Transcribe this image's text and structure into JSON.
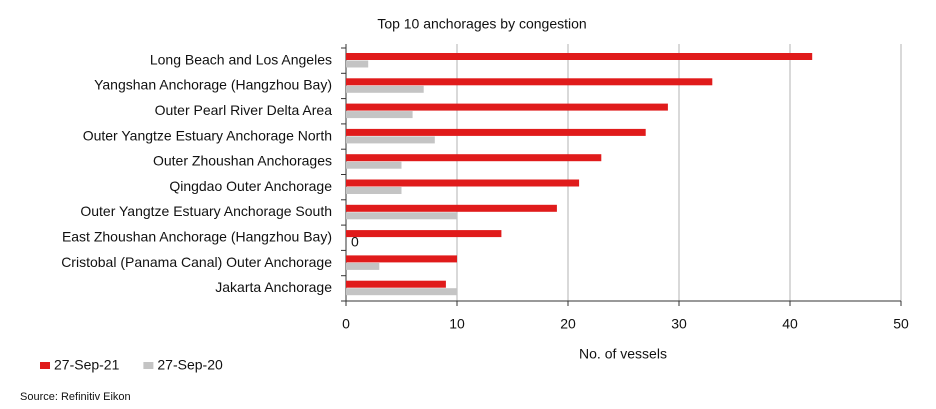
{
  "chart_data": {
    "type": "bar",
    "orientation": "horizontal",
    "title": "Top 10 anchorages by congestion",
    "xlabel": "No. of vessels",
    "categories": [
      "Long Beach and Los Angeles",
      "Yangshan Anchorage (Hangzhou Bay)",
      "Outer Pearl River Delta Area",
      "Outer Yangtze Estuary Anchorage North",
      "Outer Zhoushan Anchorages",
      "Qingdao Outer Anchorage",
      "Outer Yangtze Estuary Anchorage South",
      "East Zhoushan Anchorage (Hangzhou Bay)",
      "Cristobal (Panama Canal) Outer Anchorage",
      "Jakarta Anchorage"
    ],
    "series": [
      {
        "name": "27-Sep-21",
        "color": "#e01b1b",
        "values": [
          42,
          33,
          29,
          27,
          23,
          21,
          19,
          14,
          10,
          9
        ]
      },
      {
        "name": "27-Sep-20",
        "color": "#c4c4c4",
        "values": [
          2,
          7,
          6,
          8,
          5,
          5,
          10,
          0,
          3,
          10
        ]
      }
    ],
    "xlim": [
      0,
      50
    ],
    "xticks": [
      0,
      10,
      20,
      30,
      40,
      50
    ],
    "grid": true,
    "legend": "bottom-left",
    "source": "Source: Refinitiv Eikon"
  }
}
